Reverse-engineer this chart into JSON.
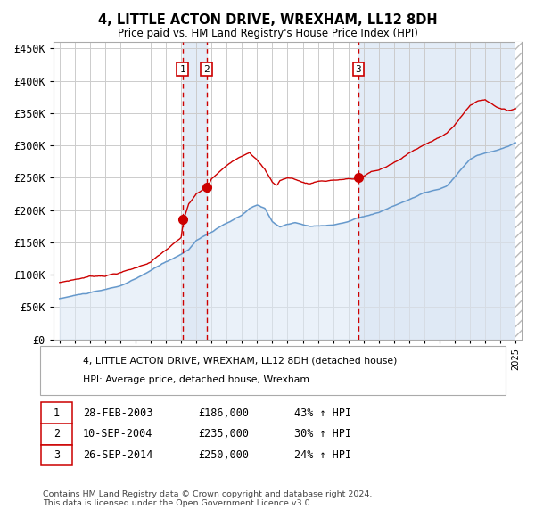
{
  "title": "4, LITTLE ACTON DRIVE, WREXHAM, LL12 8DH",
  "subtitle": "Price paid vs. HM Land Registry's House Price Index (HPI)",
  "sale1_date": "28-FEB-2003",
  "sale1_price": 186000,
  "sale1_hpi": "43%",
  "sale2_date": "10-SEP-2004",
  "sale2_price": 235000,
  "sale2_hpi": "30%",
  "sale3_date": "26-SEP-2014",
  "sale3_price": 250000,
  "sale3_hpi": "24%",
  "red_line_color": "#cc0000",
  "blue_line_color": "#6699cc",
  "blue_fill_color": "#dde8f5",
  "dashed_line_color": "#cc0000",
  "marker_color": "#cc0000",
  "grid_color": "#cccccc",
  "background_color": "#ffffff",
  "footer_text": "Contains HM Land Registry data © Crown copyright and database right 2024.\nThis data is licensed under the Open Government Licence v3.0.",
  "legend_line1": "4, LITTLE ACTON DRIVE, WREXHAM, LL12 8DH (detached house)",
  "legend_line2": "HPI: Average price, detached house, Wrexham",
  "ylim": [
    0,
    460000
  ],
  "yticks": [
    0,
    50000,
    100000,
    150000,
    200000,
    250000,
    300000,
    350000,
    400000,
    450000
  ]
}
